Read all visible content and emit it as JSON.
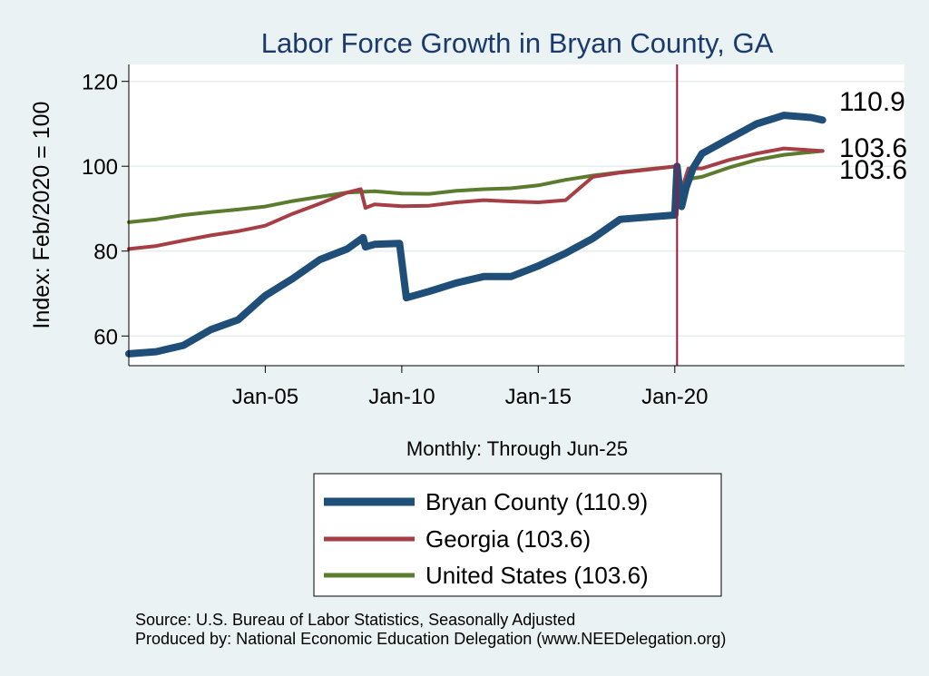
{
  "chart_data": {
    "type": "line",
    "title": "Labor Force Growth in Bryan  County, GA",
    "xlabel": "Monthly: Through Jun-25",
    "ylabel": "Index: Feb/2020 = 100",
    "ylim": [
      53,
      124
    ],
    "y_ticks": [
      60,
      80,
      100,
      120
    ],
    "x_ticks": [
      "Jan-05",
      "Jan-10",
      "Jan-15",
      "Jan-20"
    ],
    "x_range": [
      "Jan-00",
      "Jun-28"
    ],
    "vertical_marker": "Feb-20",
    "grid": true,
    "legend_position": "bottom",
    "series": [
      {
        "name": "Bryan  County",
        "legend_label": "Bryan  County (110.9)",
        "end_label": "110.9",
        "color": "#1f4e79",
        "points": [
          [
            "Jan-00",
            55.8
          ],
          [
            "Jan-01",
            56.3
          ],
          [
            "Jan-02",
            57.8
          ],
          [
            "Jan-03",
            61.5
          ],
          [
            "Jan-04",
            63.8
          ],
          [
            "Jan-05",
            69.5
          ],
          [
            "Jan-06",
            73.5
          ],
          [
            "Jan-07",
            78.0
          ],
          [
            "Jan-08",
            80.5
          ],
          [
            "Aug-08",
            83.2
          ],
          [
            "Sep-08",
            81.0
          ],
          [
            "Jan-09",
            81.6
          ],
          [
            "Dec-09",
            81.8
          ],
          [
            "Mar-10",
            69.0
          ],
          [
            "Jan-11",
            70.5
          ],
          [
            "Jan-12",
            72.5
          ],
          [
            "Jan-13",
            74.0
          ],
          [
            "Jan-14",
            74.0
          ],
          [
            "Jan-15",
            76.5
          ],
          [
            "Jan-16",
            79.5
          ],
          [
            "Jan-17",
            83.0
          ],
          [
            "Jan-18",
            87.5
          ],
          [
            "Jan-19",
            88.0
          ],
          [
            "Jan-20",
            88.5
          ],
          [
            "Feb-20",
            100.0
          ],
          [
            "Apr-20",
            90.5
          ],
          [
            "Jun-20",
            95.0
          ],
          [
            "Sep-20",
            99.5
          ],
          [
            "Jan-21",
            103.0
          ],
          [
            "Jan-22",
            106.5
          ],
          [
            "Jan-23",
            110.0
          ],
          [
            "Jan-24",
            112.0
          ],
          [
            "Jan-25",
            111.5
          ],
          [
            "Jun-25",
            110.9
          ]
        ]
      },
      {
        "name": "Georgia",
        "legend_label": "Georgia (103.6)",
        "end_label": "103.6",
        "color": "#a63f45",
        "points": [
          [
            "Jan-00",
            80.5
          ],
          [
            "Jan-01",
            81.2
          ],
          [
            "Jan-02",
            82.5
          ],
          [
            "Jan-03",
            83.7
          ],
          [
            "Jan-04",
            84.7
          ],
          [
            "Jan-05",
            86.0
          ],
          [
            "Jan-06",
            88.8
          ],
          [
            "Jan-07",
            91.2
          ],
          [
            "Jan-08",
            93.8
          ],
          [
            "Jul-08",
            94.6
          ],
          [
            "Sep-08",
            90.2
          ],
          [
            "Jan-09",
            91.0
          ],
          [
            "Jan-10",
            90.6
          ],
          [
            "Jan-11",
            90.7
          ],
          [
            "Jan-12",
            91.5
          ],
          [
            "Jan-13",
            92.0
          ],
          [
            "Jan-14",
            91.7
          ],
          [
            "Jan-15",
            91.5
          ],
          [
            "Jan-16",
            92.0
          ],
          [
            "Jan-17",
            97.5
          ],
          [
            "Jan-18",
            98.5
          ],
          [
            "Jan-19",
            99.2
          ],
          [
            "Feb-20",
            100.0
          ],
          [
            "Apr-20",
            94.5
          ],
          [
            "Jul-20",
            99.5
          ],
          [
            "Jan-21",
            99.5
          ],
          [
            "Jan-22",
            101.5
          ],
          [
            "Jan-23",
            103.0
          ],
          [
            "Jan-24",
            104.2
          ],
          [
            "Jun-25",
            103.6
          ]
        ]
      },
      {
        "name": "United States",
        "legend_label": "United States (103.6)",
        "end_label": "103.6",
        "color": "#5b7b2e",
        "points": [
          [
            "Jan-00",
            86.8
          ],
          [
            "Jan-01",
            87.5
          ],
          [
            "Jan-02",
            88.5
          ],
          [
            "Jan-03",
            89.2
          ],
          [
            "Jan-04",
            89.8
          ],
          [
            "Jan-05",
            90.5
          ],
          [
            "Jan-06",
            91.8
          ],
          [
            "Jan-07",
            92.8
          ],
          [
            "Jan-08",
            93.8
          ],
          [
            "Jan-09",
            94.1
          ],
          [
            "Jan-10",
            93.6
          ],
          [
            "Jan-11",
            93.5
          ],
          [
            "Jan-12",
            94.2
          ],
          [
            "Jan-13",
            94.6
          ],
          [
            "Jan-14",
            94.8
          ],
          [
            "Jan-15",
            95.5
          ],
          [
            "Jan-16",
            96.8
          ],
          [
            "Jan-17",
            97.8
          ],
          [
            "Jan-18",
            98.6
          ],
          [
            "Jan-19",
            99.3
          ],
          [
            "Feb-20",
            100.0
          ],
          [
            "Apr-20",
            95.0
          ],
          [
            "Jul-20",
            97.0
          ],
          [
            "Jan-21",
            97.5
          ],
          [
            "Jan-22",
            99.7
          ],
          [
            "Jan-23",
            101.5
          ],
          [
            "Jan-24",
            102.7
          ],
          [
            "Jun-25",
            103.6
          ]
        ]
      }
    ]
  },
  "footer": {
    "source": "Source: U.S. Bureau of Labor Statistics, Seasonally Adjusted",
    "produced_by": "Produced by: National Economic Education Delegation (www.NEEDelegation.org)"
  }
}
